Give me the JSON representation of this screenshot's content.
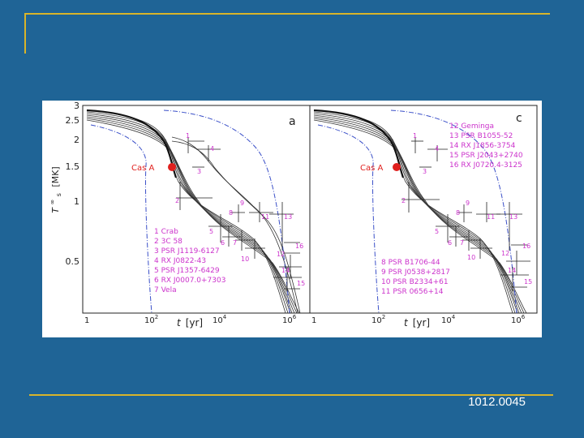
{
  "slide": {
    "footer_id": "1012.0045"
  },
  "colors": {
    "background": "#1f6496",
    "accent_rule": "#d8b42a",
    "label_magenta": "#cc33cc",
    "cas_a_red": "#e0201e",
    "curve_dashdot": "#3a4fc8"
  },
  "figure": {
    "panel_a_letter": "a",
    "panel_c_letter": "c",
    "y_axis_label": "T",
    "y_axis_sup": "∞",
    "y_axis_sub": "s",
    "y_axis_unit": "[MK]",
    "y_ticks": [
      "3",
      "2.5",
      "2",
      "1.5",
      "1",
      "0.5"
    ],
    "x_axis_label": "t",
    "x_axis_unit": "[yr]",
    "x_ticks_a": [
      "1",
      "10",
      "10",
      "10"
    ],
    "x_tick_exps_a": [
      "",
      "2",
      "4",
      "6"
    ],
    "x_ticks_c": [
      "1",
      "10",
      "10",
      "10"
    ],
    "x_tick_exps_c": [
      "",
      "2",
      "4",
      "6"
    ],
    "cas_a_label": "Cas A",
    "legend_a": [
      "1 Crab",
      "2 3C 58",
      "3 PSR J1119-6127",
      "4 RX J0822-43",
      "5 PSR J1357-6429",
      "6 RX J0007.0+7303",
      "7 Vela"
    ],
    "legend_c_top": [
      "12 Geminga",
      "13 PSR B1055-52",
      "14 RX J1856-3754",
      "15 PSR J2043+2740",
      "16 RX J0720.4-3125"
    ],
    "legend_c_bottom": [
      "8  PSR B1706-44",
      "9  PSR J0538+2817",
      "10 PSR B2334+61",
      "11 PSR 0656+14"
    ],
    "point_labels_a": [
      "1",
      "2",
      "3",
      "4",
      "5",
      "6",
      "7",
      "8",
      "9",
      "10",
      "11",
      "12",
      "13",
      "14",
      "15",
      "16"
    ],
    "point_labels_c": [
      "1",
      "2",
      "3",
      "4",
      "5",
      "6",
      "7",
      "8",
      "9",
      "10",
      "11",
      "12",
      "13",
      "14",
      "15",
      "16"
    ]
  }
}
